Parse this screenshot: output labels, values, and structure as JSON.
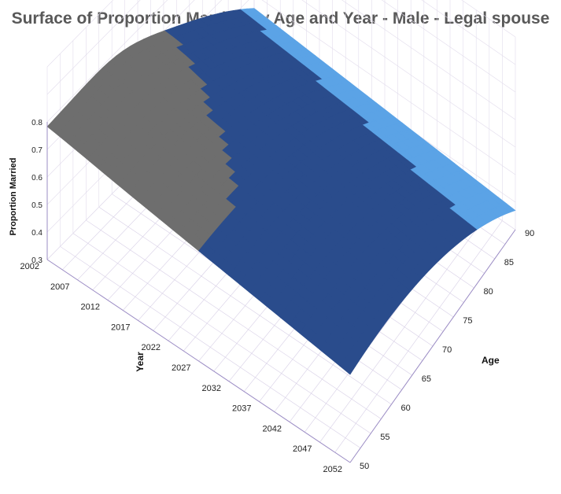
{
  "chart_data": {
    "type": "surface",
    "title": "Surface of Proportion Married by Age and Year - Male - Legal spouse",
    "xlabel": "Year",
    "ylabel": "Age",
    "zlabel": "Proportion Married",
    "year_ticks": [
      "2002",
      "2007",
      "2012",
      "2017",
      "2022",
      "2027",
      "2032",
      "2037",
      "2042",
      "2047",
      "2052"
    ],
    "age_ticks": [
      "50",
      "55",
      "60",
      "65",
      "70",
      "75",
      "80",
      "85",
      "90"
    ],
    "z_ticks": [
      "0.3",
      "0.4",
      "0.5",
      "0.6",
      "0.7",
      "0.8"
    ],
    "zlim": [
      0.3,
      0.8
    ],
    "legend_bands": [
      {
        "range": [
          0.3,
          0.5
        ],
        "color": "#5ba3e6"
      },
      {
        "range": [
          0.5,
          0.7
        ],
        "color": "#2a4c8c"
      },
      {
        "range": [
          0.7,
          0.8
        ],
        "color": "#6e6e6e"
      }
    ],
    "grid": true
  }
}
